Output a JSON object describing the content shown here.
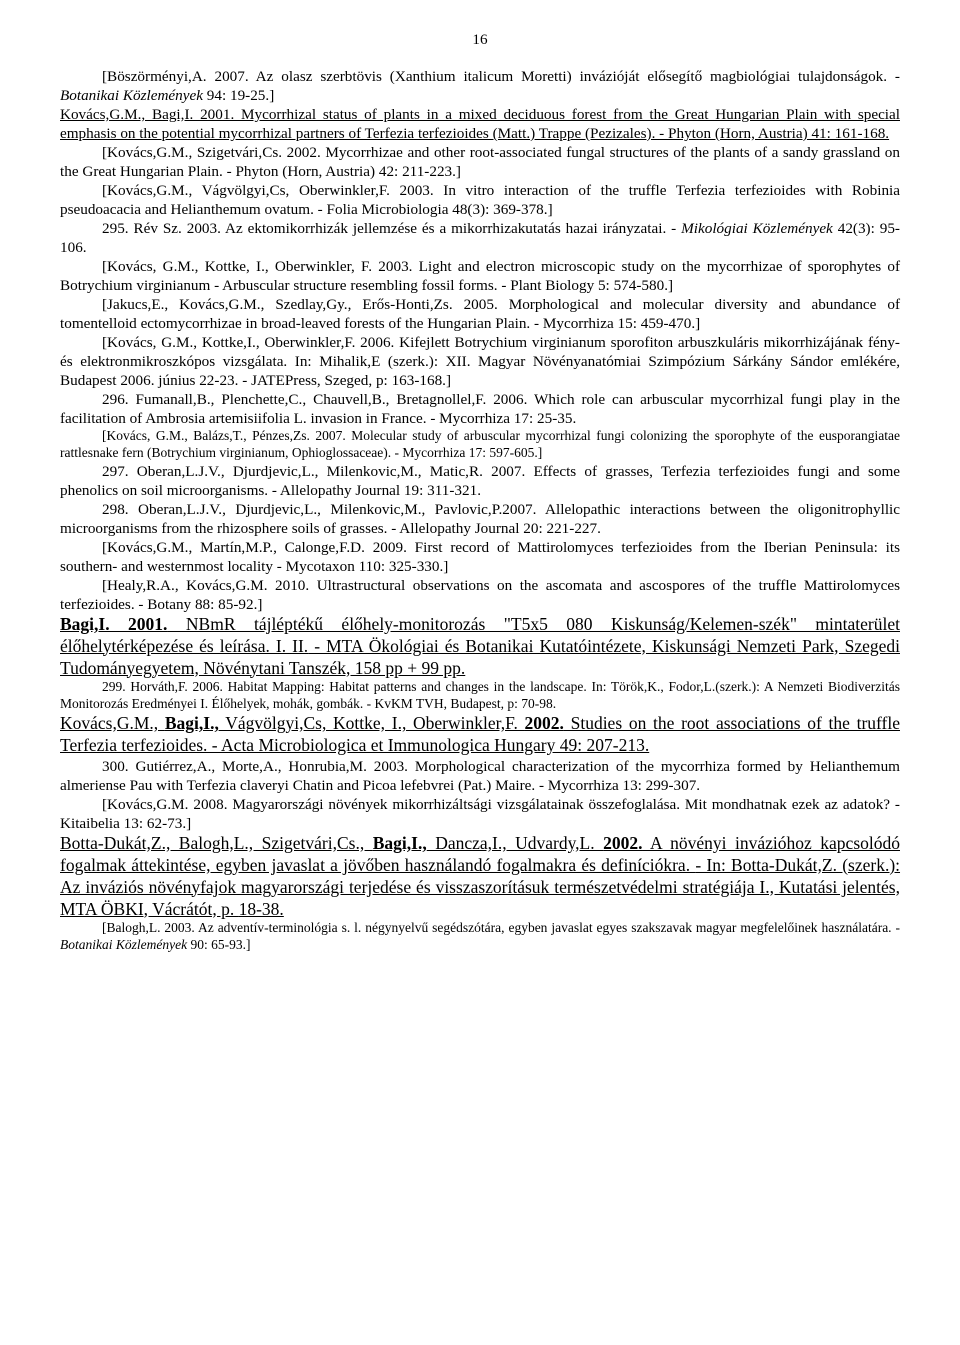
{
  "page_number": "16",
  "p1": "[Böszörményi,A. 2007. Az olasz szerbtövis (Xanthium italicum Moretti) invázióját elősegítő magbiológiai tulajdonságok. - ",
  "p1_i": "Botanikai Közlemények",
  "p1_end": " 94: 19-25.]",
  "p2_a": "Kovács,G.M., Bagi,I. 2001. Mycorrhizal status of plants in a mixed deciduous forest from the Great Hungarian Plain with special emphasis on the potential mycorrhizal partners of Terfezia terfezioides (Matt.) Trappe (Pezizales). - Phyton (Horn, Austria) 41: 161-168.",
  "p3": "[Kovács,G.M., Szigetvári,Cs. 2002. Mycorrhizae and other root-associated fungal structures of the plants of a sandy grassland on the Great Hungarian Plain. - Phyton (Horn, Austria) 42: 211-223.]",
  "p4": "[Kovács,G.M., Vágvölgyi,Cs, Oberwinkler,F. 2003. In vitro interaction of the truffle Terfezia terfezioides with Robinia pseudoacacia and Helianthemum ovatum. - Folia Microbiologia 48(3): 369-378.]",
  "p5": "295. Rév Sz. 2003. Az ektomikorrhizák jellemzése és a mikorrhizakutatás hazai irányzatai. - ",
  "p5_i": "Mikológiai Közlemények",
  "p5_end": " 42(3): 95-106.",
  "p6": "[Kovács, G.M., Kottke, I., Oberwinkler, F. 2003. Light and electron microscopic study on the mycorrhizae of sporophytes of Botrychium virginianum - Arbuscular structure resembling fossil forms. - Plant Biology 5: 574-580.]",
  "p7": "[Jakucs,E., Kovács,G.M., Szedlay,Gy., Erős-Honti,Zs. 2005. Morphological and molecular diversity and abundance of tomentelloid ectomycorrhizae in broad-leaved forests of the Hungarian Plain. - Mycorrhiza 15: 459-470.]",
  "p8": "[Kovács, G.M., Kottke,I., Oberwinkler,F. 2006. Kifejlett Botrychium virginianum sporofiton arbuszkuláris mikorrhizájának fény- és elektronmikroszkópos vizsgálata. In: Mihalik,E (szerk.): XII. Magyar Növényanatómiai Szimpózium Sárkány Sándor emlékére, Budapest 2006. június 22-23. - JATEPress, Szeged, p: 163-168.]",
  "p9": "296. Fumanall,B., Plenchette,C., Chauvell,B., Bretagnollel,F. 2006. Which role can arbuscular mycorrhizal fungi play in the facilitation of Ambrosia artemisiifolia L. invasion in France. - Mycorrhiza 17: 25-35.",
  "p10": "[Kovács, G.M., Balázs,T., Pénzes,Zs. 2007. Molecular study of arbuscular mycorrhizal fungi colonizing the sporophyte of the eusporangiatae rattlesnake fern (Botrychium virginianum, Ophioglossaceae). - Mycorrhiza 17: 597-605.]",
  "p11": "297. Oberan,L.J.V., Djurdjevic,L., Milenkovic,M., Matic,R. 2007. Effects of grasses, Terfezia terfezioides fungi and some phenolics on soil microorganisms. - Allelopathy Journal 19: 311-321.",
  "p12": "298. Oberan,L.J.V., Djurdjevic,L., Milenkovic,M., Pavlovic,P.2007. Allelopathic interactions between the oligonitrophyllic microorganisms from the rhizosphere soils of grasses. - Allelopathy Journal 20: 221-227.",
  "p13": " [Kovács,G.M., Martín,M.P., Calonge,F.D. 2009. First record of Mattirolomyces terfezioides from the Iberian Peninsula: its southern- and westernmost locality - Mycotaxon 110: 325-330.]",
  "p14": "[Healy,R.A., Kovács,G.M. 2010. Ultrastructural observations on the ascomata and ascospores of the truffle Mattirolomyces terfezioides. - Botany 88: 85-92.]",
  "h1_a": "Bagi,I. 2001.",
  "h1_b": " NBmR tájléptékű élőhely-monitorozás \"T5x5 080 Kiskunság/Kelemen-szék\" mintaterület élőhelytérképezése és leírása. I. II.",
  "h1_c": " - MTA Ökológiai és Botanikai Kutatóintézete, Kiskunsági Nemzeti Park, Szegedi Tudományegyetem, Növénytani Tanszék, 158 pp + 99 pp.",
  "p15": "299. Horváth,F. 2006. Habitat Mapping: Habitat patterns and changes in the landscape. In: Török,K., Fodor,L.(szerk.): A Nemzeti Biodiverzitás Monitorozás Eredményei I. Élőhelyek, mohák, gombák. - KvKM TVH, Budapest, p: 70-98.",
  "h2": "Kovács,G.M., ",
  "h2_b": "Bagi,I.,",
  "h2_c": " Vágvölgyi,Cs, Kottke, I., Oberwinkler,F. ",
  "h2_d": "2002.",
  "h2_e": " Studies on the root associations of the truffle Terfezia terfezioides. - Acta Microbiologica et Immunologica Hungary 49: 207-213.",
  "p16": "300. Gutiérrez,A., Morte,A., Honrubia,M. 2003. Morphological characterization of the mycorrhiza formed by Helianthemum almeriense Pau with Terfezia claveryi Chatin and Picoa lefebvrei (Pat.) Maire. - Mycorrhiza 13: 299-307.",
  "p17": "[Kovács,G.M. 2008. Magyarországi növények mikorrhizáltsági vizsgálatainak összefoglalása. Mit mondhatnak ezek az adatok? - Kitaibelia 13: 62-73.]",
  "h3": "Botta-Dukát,Z., Balogh,L., Szigetvári,Cs., ",
  "h3_b": "Bagi,I.,",
  "h3_c": " Dancza,I., Udvardy,L. ",
  "h3_d": "2002.",
  "h3_e": " A növényi invázióhoz kapcsolódó fogalmak áttekintése, egyben javaslat a jövőben használandó fogalmakra és definíciókra. ",
  "h3_f": "- In: Botta-Dukát,Z. (szerk.): Az inváziós növényfajok magyarországi terjedése és visszaszorításuk természetvédelmi stratégiája I., Kutatási jelentés, MTA ÖBKI, Vácrátót, p. ",
  "h3_g": "18-38.",
  "p18": "[Balogh,L. 2003. Az adventív-terminológia s. l. négynyelvű segédszótára, egyben javaslat egyes szakszavak magyar megfelelőinek használatára. - ",
  "p18_i": "Botanikai Közlemények",
  "p18_end": " 90: 65-93.]"
}
